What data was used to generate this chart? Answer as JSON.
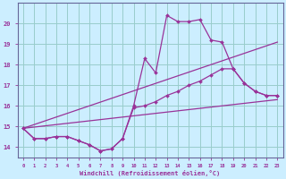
{
  "xlabel": "Windchill (Refroidissement éolien,°C)",
  "background_color": "#cceeff",
  "grid_color": "#99cccc",
  "line_color": "#993399",
  "xlim": [
    -0.5,
    23.5
  ],
  "ylim": [
    13.5,
    21.0
  ],
  "yticks": [
    14,
    15,
    16,
    17,
    18,
    19,
    20
  ],
  "xticks": [
    0,
    1,
    2,
    3,
    4,
    5,
    6,
    7,
    8,
    9,
    10,
    11,
    12,
    13,
    14,
    15,
    16,
    17,
    18,
    19,
    20,
    21,
    22,
    23
  ],
  "curve1_x": [
    0,
    1,
    2,
    3,
    4,
    5,
    6,
    7,
    8,
    9,
    10,
    11,
    12,
    13,
    14,
    15,
    16,
    17,
    18,
    19,
    20,
    21,
    22,
    23
  ],
  "curve1_y": [
    14.9,
    14.4,
    14.4,
    14.5,
    14.5,
    14.3,
    14.1,
    13.8,
    13.9,
    14.4,
    16.0,
    18.3,
    17.6,
    20.4,
    20.1,
    20.1,
    20.2,
    19.2,
    19.1,
    17.8,
    17.1,
    16.7,
    16.5,
    16.5
  ],
  "curve2_x": [
    0,
    1,
    2,
    3,
    4,
    5,
    6,
    7,
    8,
    9,
    10,
    11,
    12,
    13,
    14,
    15,
    16,
    17,
    18,
    19,
    20,
    21,
    22,
    23
  ],
  "curve2_y": [
    14.9,
    14.4,
    14.4,
    14.5,
    14.5,
    14.3,
    14.1,
    13.8,
    13.9,
    14.4,
    15.9,
    16.0,
    16.2,
    16.5,
    16.7,
    17.0,
    17.2,
    17.5,
    17.8,
    17.8,
    17.1,
    16.7,
    16.5,
    16.5
  ],
  "line3_x": [
    0,
    23
  ],
  "line3_y": [
    14.9,
    19.1
  ],
  "line4_x": [
    0,
    23
  ],
  "line4_y": [
    14.9,
    16.3
  ]
}
